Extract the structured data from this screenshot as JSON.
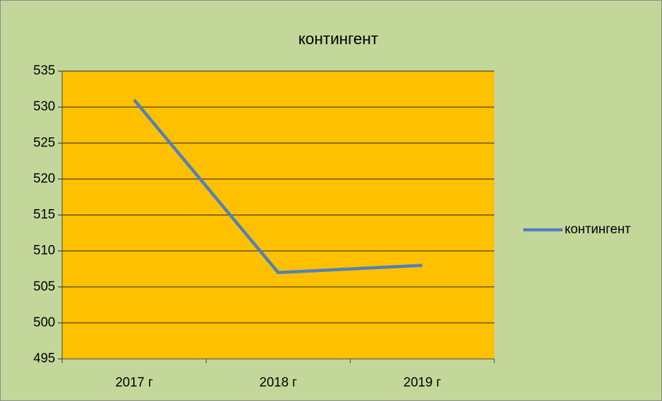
{
  "chart_data": {
    "type": "line",
    "title": "контингент",
    "categories": [
      "2017 г",
      "2018 г",
      "2019 г"
    ],
    "series": [
      {
        "name": "контингент",
        "color": "#4f81bd",
        "values": [
          531,
          507,
          508
        ]
      }
    ],
    "ylim": [
      495,
      535
    ],
    "yticks": [
      495,
      500,
      505,
      510,
      515,
      520,
      525,
      530,
      535
    ],
    "grid": true,
    "legend": "right",
    "plot_background": "#ffc000",
    "background": "#c4d79b"
  }
}
